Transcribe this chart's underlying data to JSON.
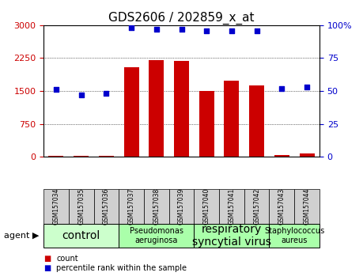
{
  "title": "GDS2606 / 202859_x_at",
  "samples": [
    "GSM157034",
    "GSM157035",
    "GSM157036",
    "GSM157037",
    "GSM157038",
    "GSM157039",
    "GSM157040",
    "GSM157041",
    "GSM157042",
    "GSM157043",
    "GSM157044"
  ],
  "counts": [
    30,
    25,
    28,
    2050,
    2200,
    2180,
    1500,
    1730,
    1620,
    35,
    80
  ],
  "percentiles": [
    51,
    47,
    48,
    98,
    97,
    97,
    96,
    96,
    96,
    52,
    53
  ],
  "bar_color": "#cc0000",
  "dot_color": "#0000cc",
  "ylim_left": [
    0,
    3000
  ],
  "ylim_right": [
    0,
    100
  ],
  "yticks_left": [
    0,
    750,
    1500,
    2250,
    3000
  ],
  "ytick_labels_left": [
    "0",
    "750",
    "1500",
    "2250",
    "3000"
  ],
  "yticks_right": [
    0,
    25,
    50,
    75,
    100
  ],
  "ytick_labels_right": [
    "0",
    "25",
    "50",
    "75",
    "100%"
  ],
  "groups": [
    {
      "label": "control",
      "start": 0,
      "end": 3,
      "color": "#ccffcc",
      "fontsize": 10
    },
    {
      "label": "Pseudomonas\naeruginosa",
      "start": 3,
      "end": 6,
      "color": "#aaffaa",
      "fontsize": 7
    },
    {
      "label": "respiratory\nsyncytial virus",
      "start": 6,
      "end": 9,
      "color": "#aaffaa",
      "fontsize": 10
    },
    {
      "label": "Staphylococcus\naureus",
      "start": 9,
      "end": 11,
      "color": "#aaffaa",
      "fontsize": 7
    }
  ],
  "agent_label": "agent",
  "legend_count_label": "count",
  "legend_pct_label": "percentile rank within the sample",
  "title_fontsize": 11,
  "tick_label_color_left": "#cc0000",
  "tick_label_color_right": "#0000cc"
}
